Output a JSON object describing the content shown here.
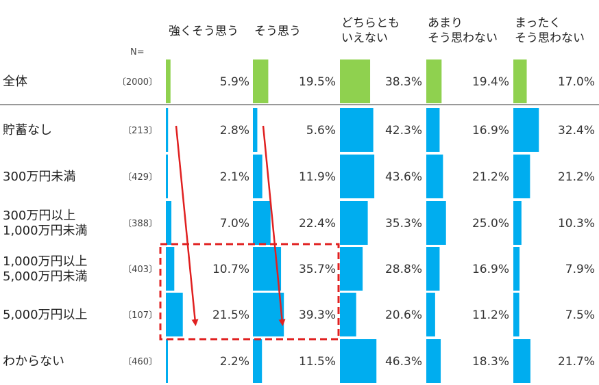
{
  "n_label": "N=",
  "chart_data": {
    "type": "bar",
    "layout": "small-multiples",
    "series": [
      {
        "name": "強くそう思う",
        "label_lines": [
          "強くそう思う"
        ]
      },
      {
        "name": "そう思う",
        "label_lines": [
          "そう思う"
        ]
      },
      {
        "name": "どちらともいえない",
        "label_lines": [
          "どちらとも",
          "いえない"
        ]
      },
      {
        "name": "あまりそう思わない",
        "label_lines": [
          "あまり",
          "そう思わない"
        ]
      },
      {
        "name": "まったくそう思わない",
        "label_lines": [
          "まったく",
          "そう思わない"
        ]
      }
    ],
    "rows": [
      {
        "label_lines": [
          "全体"
        ],
        "n": "〔2000〕",
        "values": [
          5.9,
          19.5,
          38.3,
          19.4,
          17.0
        ],
        "group": "total"
      },
      {
        "label_lines": [
          "貯蓄なし"
        ],
        "n": "〔213〕",
        "values": [
          2.8,
          5.6,
          42.3,
          16.9,
          32.4
        ],
        "group": "segment"
      },
      {
        "label_lines": [
          "300万円未満"
        ],
        "n": "〔429〕",
        "values": [
          2.1,
          11.9,
          43.6,
          21.2,
          21.2
        ],
        "group": "segment"
      },
      {
        "label_lines": [
          "300万円以上",
          "1,000万円未満"
        ],
        "n": "〔388〕",
        "values": [
          7.0,
          22.4,
          35.3,
          25.0,
          10.3
        ],
        "group": "segment"
      },
      {
        "label_lines": [
          "1,000万円以上",
          "5,000万円未満"
        ],
        "n": "〔403〕",
        "values": [
          10.7,
          35.7,
          28.8,
          16.9,
          7.9
        ],
        "group": "segment"
      },
      {
        "label_lines": [
          "5,000万円以上"
        ],
        "n": "〔107〕",
        "values": [
          21.5,
          39.3,
          20.6,
          11.2,
          7.5
        ],
        "group": "segment"
      },
      {
        "label_lines": [
          "わからない"
        ],
        "n": "〔460〕",
        "values": [
          2.2,
          11.5,
          46.3,
          18.3,
          21.7
        ],
        "group": "segment"
      }
    ],
    "value_suffix": "%",
    "colors": {
      "total": "#8fd14f",
      "segment": "#00adef",
      "arrow": "#e02020",
      "highlight_box": "#e02020"
    },
    "highlight": {
      "rows": [
        4,
        5
      ],
      "columns": [
        0,
        1
      ]
    },
    "arrows": [
      {
        "column": 0,
        "from_row": 1,
        "to_row": 5
      },
      {
        "column": 1,
        "from_row": 1,
        "to_row": 5
      }
    ]
  }
}
